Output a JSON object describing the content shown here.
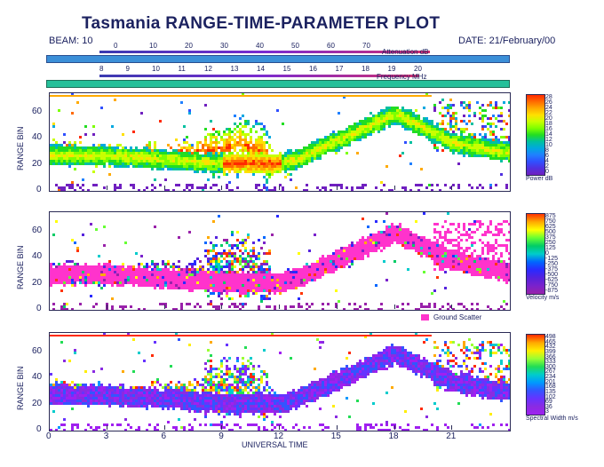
{
  "header": {
    "title": "Tasmania RANGE-TIME-PARAMETER PLOT",
    "beam_label": "BEAM: 10",
    "date_label": "DATE: 21/February/00"
  },
  "attenuation_scale": {
    "ticks": [
      "0",
      "10",
      "20",
      "30",
      "40",
      "50",
      "60",
      "70"
    ],
    "label": "Attenuation dB"
  },
  "frequency_scale": {
    "ticks": [
      "8",
      "9",
      "10",
      "11",
      "12",
      "13",
      "14",
      "15",
      "16",
      "17",
      "18",
      "19",
      "20"
    ],
    "label": "Frequency MHz"
  },
  "panels": [
    {
      "name": "power",
      "ylabel": "RANGE BIN",
      "yticks": [
        "0",
        "20",
        "40",
        "60"
      ],
      "colorbar_label": "Power dB",
      "colorbar_ticks": [
        "28",
        "26",
        "24",
        "22",
        "20",
        "18",
        "16",
        "14",
        "12",
        "10",
        "8",
        "6",
        "4",
        "2",
        "0"
      ],
      "colors": [
        "#ff2a00",
        "#ff6a00",
        "#ffaa00",
        "#ffe000",
        "#c8ff00",
        "#7dff00",
        "#22dd22",
        "#00c0a0",
        "#00a8e0",
        "#2080ff",
        "#3050ff",
        "#5030e0",
        "#7020c0"
      ]
    },
    {
      "name": "velocity",
      "ylabel": "RANGE BIN",
      "yticks": [
        "0",
        "20",
        "40",
        "60"
      ],
      "colorbar_label": "Velocity m/s",
      "colorbar_ticks": [
        "875",
        "750",
        "625",
        "500",
        "375",
        "250",
        "125",
        "0",
        "-125",
        "-250",
        "-375",
        "-500",
        "-625",
        "-750",
        "-875"
      ],
      "legend_label": "Ground Scatter",
      "colors": [
        "#ff3300",
        "#ffaa00",
        "#ffff00",
        "#66ff33",
        "#00cc66",
        "#00cccc",
        "#0066ff",
        "#2a2aff",
        "#5522dd",
        "#7a22cc",
        "#9922aa"
      ]
    },
    {
      "name": "spectral_width",
      "ylabel": "RANGE BIN",
      "yticks": [
        "0",
        "20",
        "40",
        "60"
      ],
      "colorbar_label": "Spectral Width m/s",
      "colorbar_ticks": [
        "498",
        "465",
        "432",
        "399",
        "366",
        "333",
        "300",
        "267",
        "234",
        "201",
        "168",
        "135",
        "102",
        "69",
        "36",
        "3"
      ],
      "colors": [
        "#ff2a00",
        "#ffaa00",
        "#ffee00",
        "#99ff33",
        "#22dd55",
        "#00cccc",
        "#0099ff",
        "#3355ff",
        "#6633ff",
        "#8a2be2",
        "#a020f0"
      ]
    }
  ],
  "xaxis": {
    "ticks": [
      "0",
      "3",
      "6",
      "9",
      "12",
      "15",
      "18",
      "21"
    ],
    "label": "UNIVERSAL TIME"
  },
  "chart_data": {
    "type": "heatmap",
    "title": "Tasmania RANGE-TIME-PARAMETER PLOT",
    "xlabel": "UNIVERSAL TIME",
    "ylabel": "RANGE BIN",
    "xlim": [
      0,
      24
    ],
    "ylim": [
      0,
      75
    ],
    "x_ticks": [
      0,
      3,
      6,
      9,
      12,
      15,
      18,
      21
    ],
    "y_ticks": [
      0,
      20,
      40,
      60
    ],
    "ground_scatter_band": {
      "time": [
        0,
        3,
        6,
        9,
        11,
        12,
        13,
        15,
        18,
        21,
        24
      ],
      "range_bin": [
        28,
        28,
        25,
        22,
        22,
        22,
        26,
        40,
        60,
        38,
        30
      ]
    },
    "ionospheric_scatter_center": {
      "time": [
        0,
        3,
        6,
        9,
        10,
        11,
        12
      ],
      "range_bin": [
        32,
        28,
        30,
        33,
        38,
        30,
        20
      ]
    },
    "power_scale_db": [
      0,
      28
    ],
    "velocity_scale_ms": [
      -875,
      875
    ],
    "spectral_width_scale_ms": [
      3,
      498
    ]
  }
}
